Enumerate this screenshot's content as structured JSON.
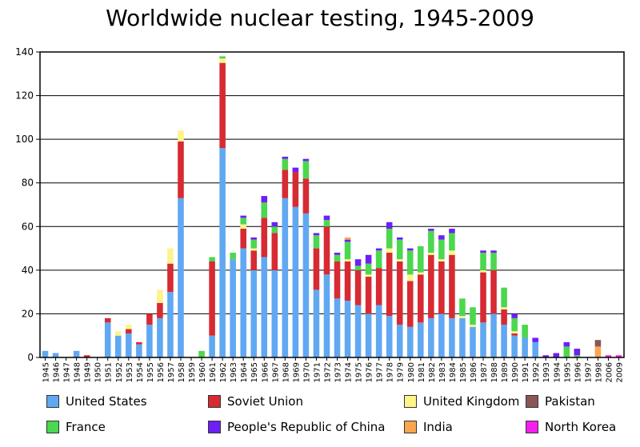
{
  "chart_data": {
    "type": "bar",
    "stacked": true,
    "title": "Worldwide nuclear testing, 1945-2009",
    "xlabel": "",
    "ylabel": "",
    "ylim": [
      0,
      140
    ],
    "yticks": [
      0,
      20,
      40,
      60,
      80,
      100,
      120,
      140
    ],
    "grid": true,
    "legend_position": "bottom",
    "categories": [
      "1945",
      "1946",
      "1947",
      "1948",
      "1949",
      "1950",
      "1951",
      "1952",
      "1953",
      "1954",
      "1955",
      "1956",
      "1957",
      "1958",
      "1959",
      "1960",
      "1961",
      "1962",
      "1963",
      "1964",
      "1965",
      "1966",
      "1967",
      "1968",
      "1969",
      "1970",
      "1971",
      "1972",
      "1973",
      "1974",
      "1975",
      "1976",
      "1977",
      "1978",
      "1979",
      "1980",
      "1981",
      "1982",
      "1983",
      "1984",
      "1985",
      "1986",
      "1987",
      "1988",
      "1989",
      "1990",
      "1991",
      "1992",
      "1993",
      "1994",
      "1995",
      "1996",
      "1997",
      "1998",
      "2006",
      "2009"
    ],
    "series": [
      {
        "name": "United States",
        "color": "#60a8f2",
        "values": [
          3,
          2,
          0,
          3,
          0,
          0,
          16,
          10,
          11,
          6,
          15,
          18,
          30,
          73,
          0,
          0,
          10,
          96,
          45,
          50,
          40,
          46,
          40,
          73,
          69,
          66,
          31,
          38,
          27,
          26,
          24,
          20,
          24,
          19,
          15,
          14,
          16,
          18,
          20,
          18,
          18,
          14,
          16,
          20,
          15,
          10,
          9,
          7,
          0,
          0,
          0,
          0,
          0,
          0,
          0,
          0
        ]
      },
      {
        "name": "Soviet Union",
        "color": "#d72a32",
        "values": [
          0,
          0,
          0,
          0,
          1,
          0,
          2,
          0,
          2,
          1,
          5,
          7,
          13,
          26,
          0,
          0,
          34,
          39,
          0,
          9,
          9,
          18,
          17,
          13,
          16,
          16,
          19,
          22,
          17,
          18,
          16,
          17,
          17,
          29,
          29,
          21,
          22,
          29,
          24,
          29,
          0,
          0,
          23,
          20,
          7,
          1,
          0,
          0,
          0,
          0,
          0,
          0,
          0,
          0,
          0,
          0
        ]
      },
      {
        "name": "United Kingdom",
        "color": "#fdf48b",
        "values": [
          0,
          0,
          0,
          0,
          0,
          0,
          0,
          2,
          2,
          0,
          0,
          6,
          7,
          5,
          0,
          0,
          0,
          2,
          0,
          2,
          1,
          0,
          0,
          0,
          0,
          0,
          0,
          0,
          0,
          1,
          0,
          1,
          0,
          2,
          1,
          3,
          1,
          1,
          1,
          2,
          1,
          1,
          1,
          0,
          1,
          1,
          0,
          0,
          0,
          0,
          0,
          0,
          0,
          0,
          0,
          0
        ]
      },
      {
        "name": "France",
        "color": "#4bd74e",
        "values": [
          0,
          0,
          0,
          0,
          0,
          0,
          0,
          0,
          0,
          0,
          0,
          0,
          0,
          0,
          0,
          3,
          2,
          1,
          3,
          3,
          4,
          7,
          3,
          5,
          0,
          8,
          6,
          3,
          3,
          8,
          2,
          5,
          8,
          9,
          9,
          11,
          12,
          10,
          9,
          8,
          8,
          8,
          8,
          8,
          9,
          6,
          6,
          0,
          0,
          0,
          5,
          1,
          0,
          0,
          0,
          0
        ]
      },
      {
        "name": "People's Republic of China",
        "color": "#6d1ff7",
        "values": [
          0,
          0,
          0,
          0,
          0,
          0,
          0,
          0,
          0,
          0,
          0,
          0,
          0,
          0,
          0,
          0,
          0,
          0,
          0,
          1,
          1,
          3,
          2,
          1,
          2,
          1,
          1,
          2,
          1,
          1,
          3,
          4,
          1,
          3,
          1,
          1,
          0,
          1,
          2,
          2,
          0,
          0,
          1,
          1,
          0,
          2,
          0,
          2,
          1,
          2,
          2,
          3,
          0,
          0,
          0,
          0
        ]
      },
      {
        "name": "India",
        "color": "#fba54e",
        "values": [
          0,
          0,
          0,
          0,
          0,
          0,
          0,
          0,
          0,
          0,
          0,
          0,
          0,
          0,
          0,
          0,
          0,
          0,
          0,
          0,
          0,
          0,
          0,
          0,
          0,
          0,
          0,
          0,
          0,
          1,
          0,
          0,
          0,
          0,
          0,
          0,
          0,
          0,
          0,
          0,
          0,
          0,
          0,
          0,
          0,
          0,
          0,
          0,
          0,
          0,
          0,
          0,
          0,
          5,
          0,
          0
        ]
      },
      {
        "name": "Pakistan",
        "color": "#8b5656",
        "values": [
          0,
          0,
          0,
          0,
          0,
          0,
          0,
          0,
          0,
          0,
          0,
          0,
          0,
          0,
          0,
          0,
          0,
          0,
          0,
          0,
          0,
          0,
          0,
          0,
          0,
          0,
          0,
          0,
          0,
          0,
          0,
          0,
          0,
          0,
          0,
          0,
          0,
          0,
          0,
          0,
          0,
          0,
          0,
          0,
          0,
          0,
          0,
          0,
          0,
          0,
          0,
          0,
          0,
          3,
          0,
          0
        ]
      },
      {
        "name": "North Korea",
        "color": "#f71ff0",
        "values": [
          0,
          0,
          0,
          0,
          0,
          0,
          0,
          0,
          0,
          0,
          0,
          0,
          0,
          0,
          0,
          0,
          0,
          0,
          0,
          0,
          0,
          0,
          0,
          0,
          0,
          0,
          0,
          0,
          0,
          0,
          0,
          0,
          0,
          0,
          0,
          0,
          0,
          0,
          0,
          0,
          0,
          0,
          0,
          0,
          0,
          0,
          0,
          0,
          0,
          0,
          0,
          0,
          0,
          0,
          1,
          1
        ]
      }
    ],
    "legend_order": [
      [
        "United States",
        "Soviet Union",
        "United Kingdom",
        "Pakistan"
      ],
      [
        "France",
        "People's Republic of China",
        "India",
        "North Korea"
      ]
    ]
  }
}
